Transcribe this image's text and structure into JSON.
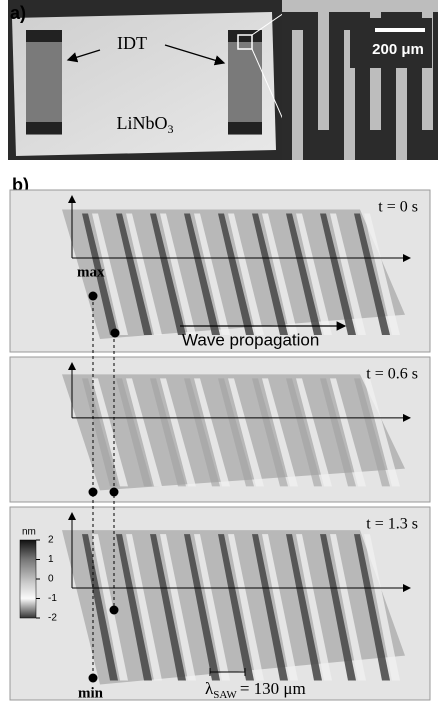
{
  "panel_a": {
    "label": "a)",
    "idt_label": "IDT",
    "substrate_label": "LiNbO",
    "substrate_subscript": "3",
    "scale_bar": "200 μm"
  },
  "panel_b": {
    "label": "b)",
    "frames": [
      {
        "time": "t = 0 s",
        "max_label": "max",
        "arrow_label": "Wave propagation"
      },
      {
        "time": "t = 0.6 s"
      },
      {
        "time": "t = 1.3 s",
        "min_label": "min",
        "wavelength_symbol": "λ",
        "wavelength_subscript": "SAW",
        "wavelength_value": "= 130 μm"
      }
    ],
    "colorbar": {
      "unit": "nm",
      "range": [
        -2,
        2
      ],
      "ticks": [
        2,
        1,
        0,
        -1,
        -2
      ]
    }
  }
}
